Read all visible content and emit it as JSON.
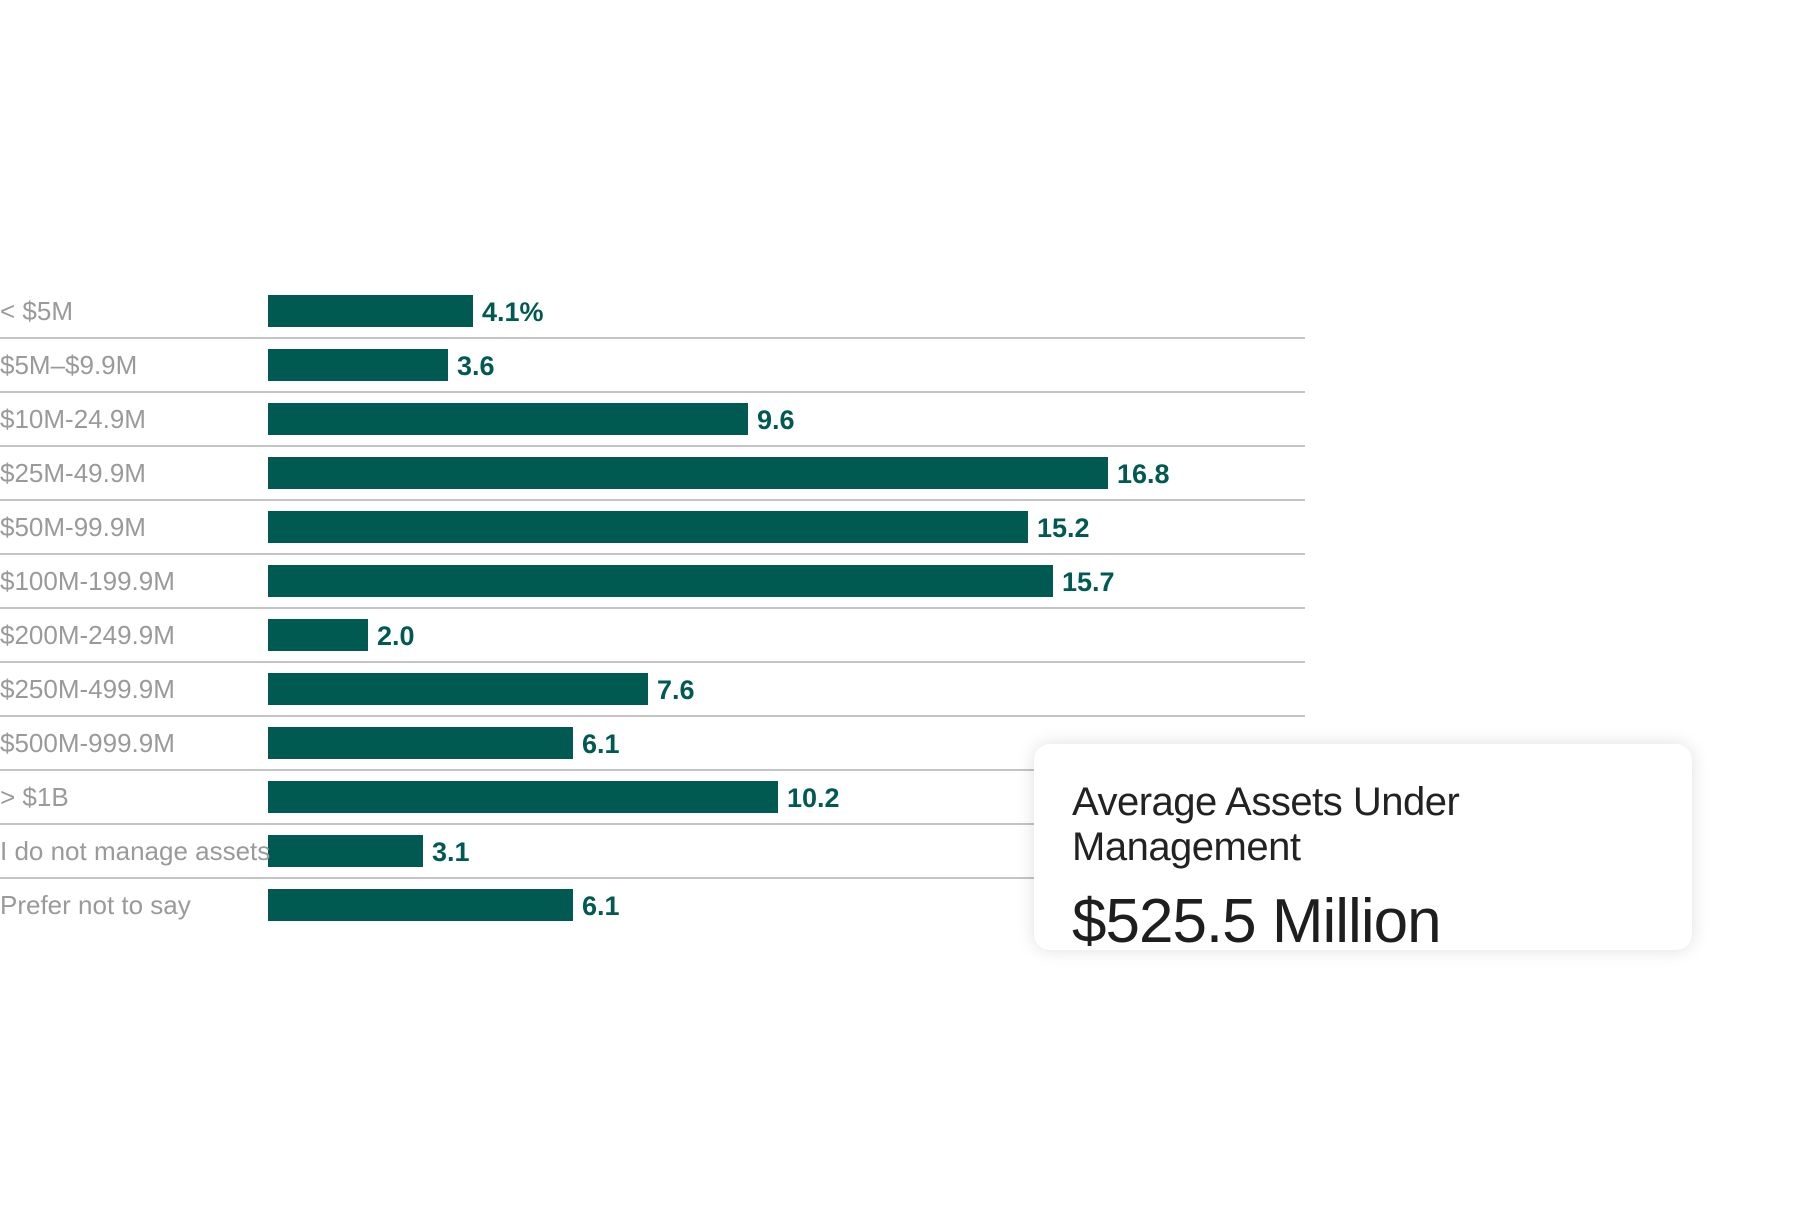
{
  "chart_data": {
    "type": "bar",
    "orientation": "horizontal",
    "categories": [
      "< $5M",
      "$5M–$9.9M",
      "$10M-24.9M",
      "$25M-49.9M",
      "$50M-99.9M",
      "$100M-199.9M",
      "$200M-249.9M",
      "$250M-499.9M",
      "$500M-999.9M",
      "> $1B",
      "I do not manage assets",
      "Prefer not to say"
    ],
    "values": [
      4.1,
      3.6,
      9.6,
      16.8,
      15.2,
      15.7,
      2.0,
      7.6,
      6.1,
      10.2,
      3.1,
      6.1
    ],
    "value_labels": [
      "4.1%",
      "3.6",
      "9.6",
      "16.8",
      "15.2",
      "15.7",
      "2.0",
      "7.6",
      "6.1",
      "10.2",
      "3.1",
      "6.1"
    ],
    "unit": "%",
    "xlim": [
      0,
      20.6
    ],
    "grid": false,
    "colors": {
      "bar": "#005a52",
      "label": "#9a9a9a",
      "separator": "#c4c4c4"
    }
  },
  "callout": {
    "title": "Average Assets Under Management",
    "value": "$525.5 Million"
  }
}
